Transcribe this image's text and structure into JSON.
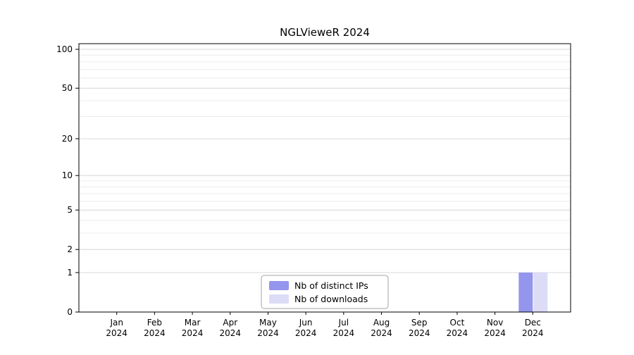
{
  "chart_data": {
    "type": "bar",
    "title": "NGLVieweR 2024",
    "categories": [
      "Jan 2024",
      "Feb 2024",
      "Mar 2024",
      "Apr 2024",
      "May 2024",
      "Jun 2024",
      "Jul 2024",
      "Aug 2024",
      "Sep 2024",
      "Oct 2024",
      "Nov 2024",
      "Dec 2024"
    ],
    "series": [
      {
        "name": "Nb of distinct IPs",
        "color": "#9495ed",
        "values": [
          0,
          0,
          0,
          0,
          0,
          0,
          0,
          0,
          0,
          0,
          0,
          1
        ]
      },
      {
        "name": "Nb of downloads",
        "color": "#dcdcf7",
        "values": [
          0,
          0,
          0,
          0,
          0,
          0,
          0,
          0,
          0,
          0,
          0,
          1
        ]
      }
    ],
    "yscale": "log1p",
    "yticks": [
      0,
      1,
      2,
      5,
      10,
      20,
      50,
      100
    ],
    "minor_yticks": [
      1,
      2,
      3,
      4,
      5,
      6,
      7,
      8,
      9,
      10,
      20,
      30,
      40,
      50,
      60,
      70,
      80,
      90,
      100
    ],
    "ylim": [
      0,
      100
    ],
    "xlabel": "",
    "ylabel": "",
    "grid": true,
    "legend_position": "bottom-center",
    "colors": {
      "frame": "#000000",
      "major_grid": "#dadada",
      "minor_grid": "#ececec",
      "legend_border": "#a3a3a3",
      "background": "#ffffff"
    }
  }
}
